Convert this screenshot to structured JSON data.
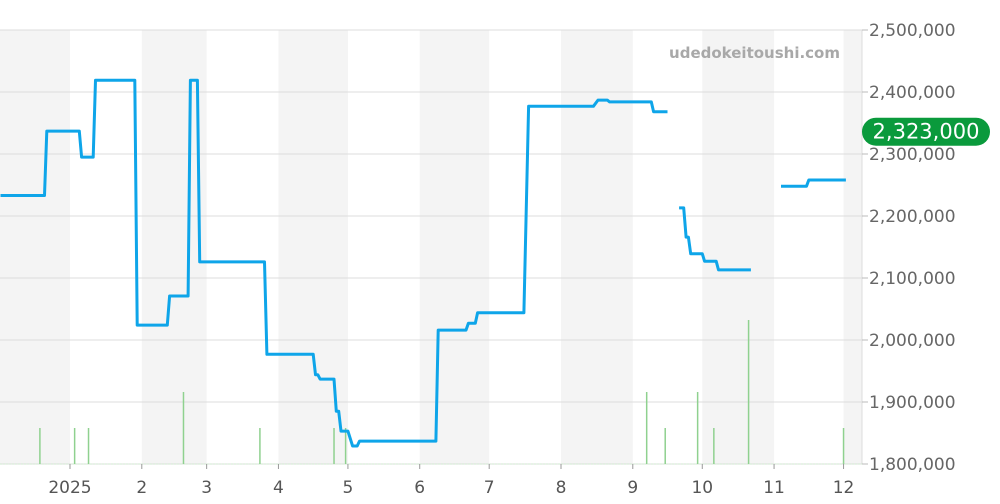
{
  "watermark": "udedokeitoushi.com",
  "current_price_label": "2,323,000",
  "colors": {
    "line": "#0ea5e9",
    "volume": "#8fd18f",
    "badge": "#0a9a3c",
    "band": "#f4f4f4"
  },
  "chart_data": {
    "type": "line",
    "ylim": [
      1800000,
      2500000
    ],
    "y_ticks": [
      "1,800,000",
      "1,900,000",
      "2,000,000",
      "2,100,000",
      "2,200,000",
      "2,300,000",
      "2,400,000",
      "2,500,000"
    ],
    "y_tick_values": [
      1800000,
      1900000,
      2000000,
      2100000,
      2200000,
      2300000,
      2400000,
      2500000
    ],
    "x_ticks": [
      "2025",
      "2",
      "3",
      "4",
      "5",
      "6",
      "7",
      "8",
      "9",
      "10",
      "11",
      "12"
    ],
    "x_tick_dates": [
      "2025-01-01",
      "2025-02-01",
      "2025-03-01",
      "2025-04-01",
      "2025-05-01",
      "2025-06-01",
      "2025-07-01",
      "2025-08-01",
      "2025-09-01",
      "2025-10-01",
      "2025-11-01",
      "2025-12-01"
    ],
    "grid": true,
    "current_value": 2323000,
    "series": [
      {
        "type": "line",
        "segments": [
          [
            [
              "2024-12-02",
              2233000
            ],
            [
              "2024-12-21",
              2233000
            ],
            [
              "2024-12-22",
              2337000
            ],
            [
              "2025-01-05",
              2337000
            ],
            [
              "2025-01-06",
              2295000
            ],
            [
              "2025-01-11",
              2295000
            ],
            [
              "2025-01-12",
              2419000
            ],
            [
              "2025-01-29",
              2419000
            ],
            [
              "2025-01-30",
              2024000
            ],
            [
              "2025-02-12",
              2024000
            ],
            [
              "2025-02-13",
              2071000
            ],
            [
              "2025-02-21",
              2071000
            ],
            [
              "2025-02-22",
              2419000
            ],
            [
              "2025-02-25",
              2419000
            ],
            [
              "2025-02-26",
              2126000
            ],
            [
              "2025-03-26",
              2126000
            ],
            [
              "2025-03-27",
              1977000
            ],
            [
              "2025-04-16",
              1977000
            ],
            [
              "2025-04-17",
              1944000
            ],
            [
              "2025-04-18",
              1944000
            ],
            [
              "2025-04-19",
              1937000
            ],
            [
              "2025-04-25",
              1937000
            ],
            [
              "2025-04-26",
              1885000
            ],
            [
              "2025-04-27",
              1885000
            ],
            [
              "2025-04-28",
              1853000
            ],
            [
              "2025-05-01",
              1853000
            ],
            [
              "2025-05-03",
              1829000
            ],
            [
              "2025-05-05",
              1829000
            ],
            [
              "2025-05-06",
              1837000
            ],
            [
              "2025-06-08",
              1837000
            ],
            [
              "2025-06-09",
              2016000
            ],
            [
              "2025-06-21",
              2016000
            ],
            [
              "2025-06-22",
              2027000
            ],
            [
              "2025-06-25",
              2027000
            ],
            [
              "2025-06-26",
              2044000
            ],
            [
              "2025-07-16",
              2044000
            ],
            [
              "2025-07-18",
              2377000
            ],
            [
              "2025-08-15",
              2377000
            ],
            [
              "2025-08-17",
              2387000
            ],
            [
              "2025-08-21",
              2387000
            ],
            [
              "2025-08-22",
              2384000
            ],
            [
              "2025-09-09",
              2384000
            ],
            [
              "2025-09-10",
              2368000
            ],
            [
              "2025-09-16",
              2368000
            ]
          ],
          [
            [
              "2025-09-21",
              2213000
            ],
            [
              "2025-09-23",
              2213000
            ],
            [
              "2025-09-24",
              2166000
            ],
            [
              "2025-09-25",
              2166000
            ],
            [
              "2025-09-26",
              2139000
            ],
            [
              "2025-10-01",
              2139000
            ],
            [
              "2025-10-02",
              2127000
            ],
            [
              "2025-10-07",
              2127000
            ],
            [
              "2025-10-08",
              2113000
            ],
            [
              "2025-10-22",
              2113000
            ]
          ],
          [
            [
              "2025-11-04",
              2248000
            ],
            [
              "2025-11-15",
              2248000
            ],
            [
              "2025-11-16",
              2258000
            ],
            [
              "2025-12-02",
              2258000
            ]
          ]
        ]
      },
      {
        "type": "bar",
        "role": "volume",
        "points": [
          [
            "2024-12-19",
            1
          ],
          [
            "2025-01-03",
            1
          ],
          [
            "2025-01-09",
            1
          ],
          [
            "2025-02-19",
            2
          ],
          [
            "2025-03-24",
            1
          ],
          [
            "2025-04-25",
            1
          ],
          [
            "2025-04-30",
            1
          ],
          [
            "2025-09-07",
            2
          ],
          [
            "2025-09-15",
            1
          ],
          [
            "2025-09-29",
            2
          ],
          [
            "2025-10-06",
            1
          ],
          [
            "2025-10-21",
            4
          ],
          [
            "2025-12-01",
            1
          ]
        ]
      }
    ]
  }
}
